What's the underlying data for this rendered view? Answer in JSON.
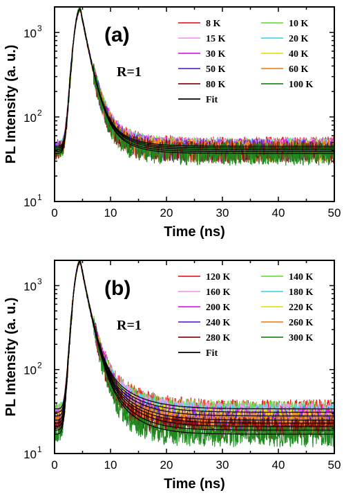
{
  "chart_data": [
    {
      "type": "line",
      "panel_label": "(a)",
      "annotation": "R=1",
      "xlabel": "Time (ns)",
      "ylabel": "PL Intensity (a. u.)",
      "xlim": [
        0,
        50
      ],
      "ylim": [
        10,
        2000
      ],
      "yscale": "log",
      "xticks": [
        "0",
        "10",
        "20",
        "30",
        "40",
        "50"
      ],
      "yticks": [
        {
          "base": "10",
          "exp": "1"
        },
        {
          "base": "10",
          "exp": "2"
        },
        {
          "base": "10",
          "exp": "3"
        }
      ],
      "legend_position": "top-right",
      "series": [
        {
          "name": "8 K",
          "color": "#e8262a",
          "peak": 1900,
          "background": 45,
          "tail": 3.5
        },
        {
          "name": "10 K",
          "color": "#6ee04a",
          "peak": 1900,
          "background": 44,
          "tail": 3.5
        },
        {
          "name": "15 K",
          "color": "#f29bf2",
          "peak": 1900,
          "background": 44,
          "tail": 3.5
        },
        {
          "name": "20 K",
          "color": "#4fd6e8",
          "peak": 1900,
          "background": 43,
          "tail": 3.4
        },
        {
          "name": "30 K",
          "color": "#e020e8",
          "peak": 1900,
          "background": 43,
          "tail": 3.4
        },
        {
          "name": "40 K",
          "color": "#e8e020",
          "peak": 1900,
          "background": 42,
          "tail": 3.4
        },
        {
          "name": "50 K",
          "color": "#6a2bd8",
          "peak": 1900,
          "background": 42,
          "tail": 3.3
        },
        {
          "name": "60 K",
          "color": "#f0892a",
          "peak": 1900,
          "background": 41,
          "tail": 3.3
        },
        {
          "name": "80 K",
          "color": "#8a1010",
          "peak": 1900,
          "background": 40,
          "tail": 3.2
        },
        {
          "name": "100 K",
          "color": "#208a20",
          "peak": 1900,
          "background": 38,
          "tail": 3.1
        },
        {
          "name": "Fit",
          "color": "#000000",
          "fit": true
        }
      ],
      "fit_backgrounds": [
        45,
        43,
        41,
        39,
        37
      ]
    },
    {
      "type": "line",
      "panel_label": "(b)",
      "annotation": "R=1",
      "xlabel": "Time (ns)",
      "ylabel": "PL Intensity (a. u.)",
      "xlim": [
        0,
        50
      ],
      "ylim": [
        10,
        2000
      ],
      "yscale": "log",
      "xticks": [
        "0",
        "10",
        "20",
        "30",
        "40",
        "50"
      ],
      "yticks": [
        {
          "base": "10",
          "exp": "1"
        },
        {
          "base": "10",
          "exp": "2"
        },
        {
          "base": "10",
          "exp": "3"
        }
      ],
      "legend_position": "top-right",
      "series": [
        {
          "name": "120 K",
          "color": "#e8262a",
          "peak": 1950,
          "background": 34,
          "tail": 4.5
        },
        {
          "name": "140 K",
          "color": "#6ee04a",
          "peak": 1950,
          "background": 33,
          "tail": 4.4
        },
        {
          "name": "160 K",
          "color": "#f29bf2",
          "peak": 1950,
          "background": 31,
          "tail": 4.3
        },
        {
          "name": "180 K",
          "color": "#4fd6e8",
          "peak": 1950,
          "background": 30,
          "tail": 4.2
        },
        {
          "name": "200 K",
          "color": "#e020e8",
          "peak": 1950,
          "background": 28,
          "tail": 4.1
        },
        {
          "name": "220 K",
          "color": "#e8e020",
          "peak": 1950,
          "background": 27,
          "tail": 4.0
        },
        {
          "name": "240 K",
          "color": "#6a2bd8",
          "peak": 1950,
          "background": 25,
          "tail": 3.8
        },
        {
          "name": "260 K",
          "color": "#f0892a",
          "peak": 1950,
          "background": 24,
          "tail": 3.7
        },
        {
          "name": "280 K",
          "color": "#8a1010",
          "peak": 1950,
          "background": 21,
          "tail": 3.5
        },
        {
          "name": "300 K",
          "color": "#208a20",
          "peak": 1950,
          "background": 17,
          "tail": 3.2
        },
        {
          "name": "Fit",
          "color": "#000000",
          "fit": true
        }
      ],
      "fit_backgrounds": [
        34,
        31,
        28,
        25,
        23,
        21,
        19,
        17
      ]
    }
  ]
}
